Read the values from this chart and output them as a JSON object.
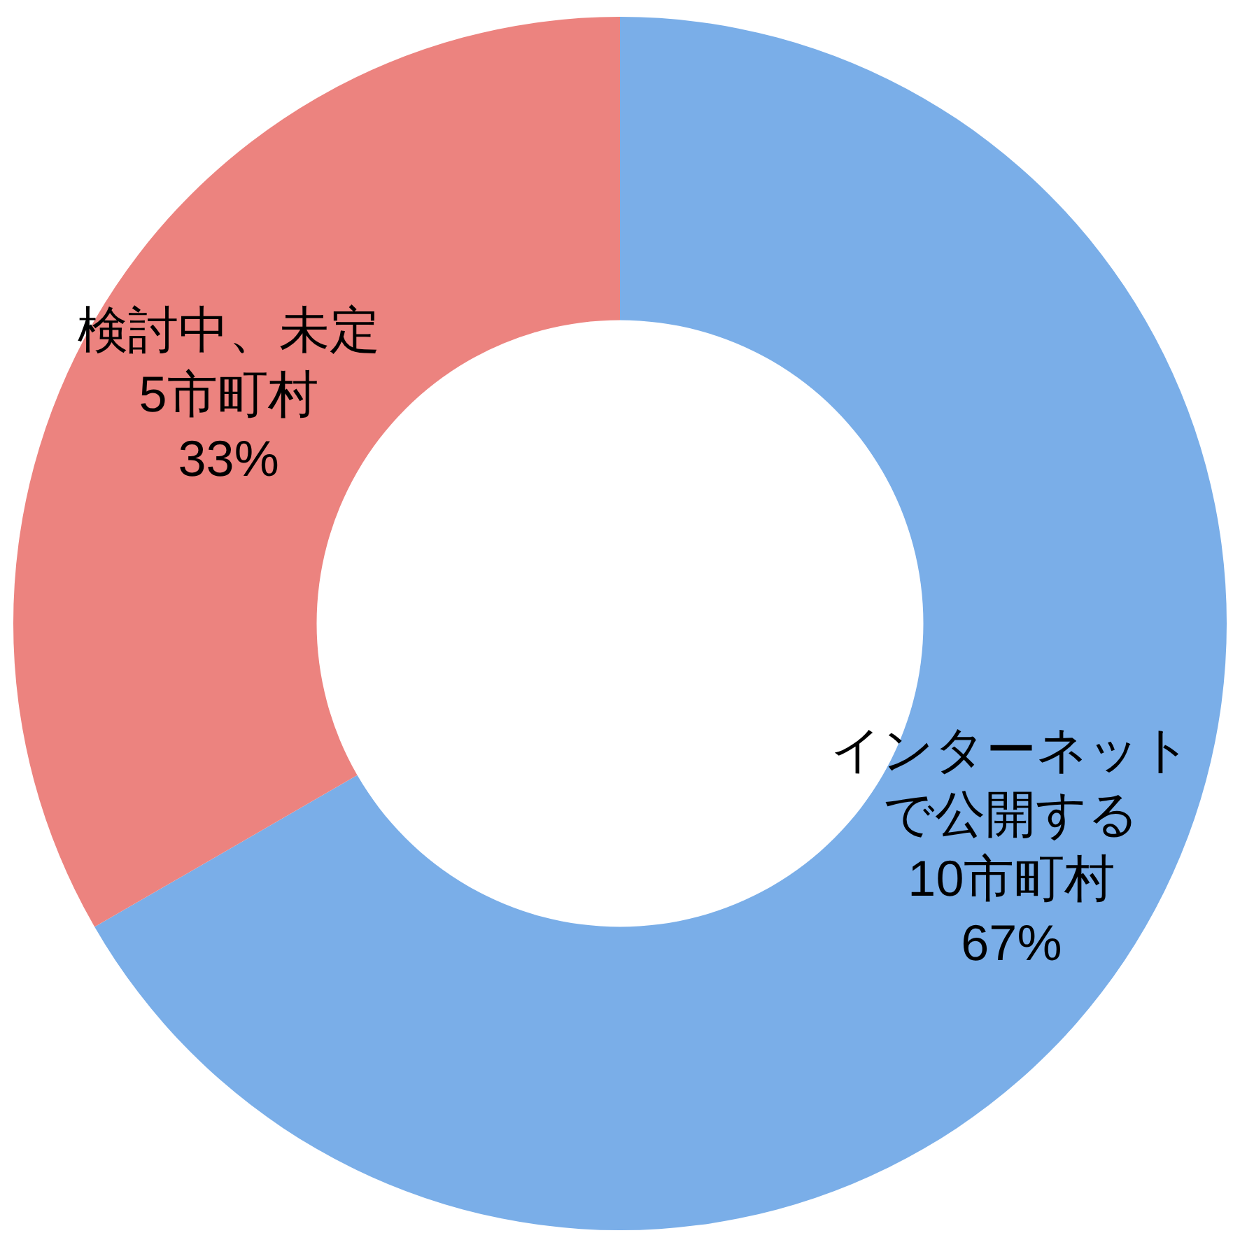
{
  "chart_data": {
    "type": "donut",
    "categories": [
      "インターネットで公開する",
      "検討中、未定"
    ],
    "values": [
      10,
      5
    ],
    "value_labels": [
      "10市町村\n67%",
      "5市町村\n33%"
    ],
    "colors": [
      "#7aaee8",
      "#ec837f"
    ],
    "legend": false
  }
}
